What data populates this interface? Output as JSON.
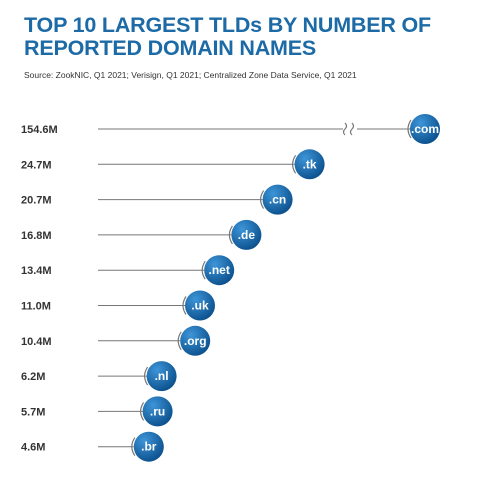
{
  "title": "TOP 10 LARGEST TLDs BY NUMBER OF REPORTED DOMAIN NAMES",
  "source": "Source: ZookNIC, Q1 2021; Verisign, Q1 2021; Centralized Zone Data Service, Q1 2021",
  "colors": {
    "title": "#1c6aa6",
    "bubble_light": "#3d95d8",
    "bubble_dark": "#0b4f8c",
    "line": "#777777"
  },
  "chart_data": {
    "type": "lollipop-bar",
    "categories": [
      ".com",
      ".tk",
      ".cn",
      ".de",
      ".net",
      ".uk",
      ".org",
      ".nl",
      ".ru",
      ".br"
    ],
    "values": [
      154.6,
      24.7,
      20.7,
      16.8,
      13.4,
      11.0,
      10.4,
      6.2,
      5.7,
      4.6
    ],
    "value_labels": [
      "154.6M",
      "24.7M",
      "20.7M",
      "16.8M",
      "13.4M",
      "11.0M",
      "10.4M",
      "6.2M",
      "5.7M",
      "4.6M"
    ],
    "unit": "M",
    "axis_break": true,
    "orientation": "horizontal"
  }
}
